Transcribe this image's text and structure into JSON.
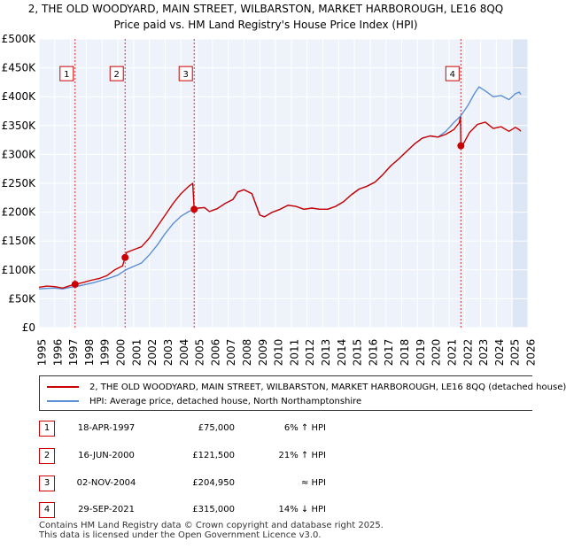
{
  "header": {
    "title_line1": "2, THE OLD WOODYARD, MAIN STREET, WILBARSTON, MARKET HARBOROUGH, LE16 8QQ",
    "title_line2": "Price paid vs. HM Land Registry's House Price Index (HPI)"
  },
  "colors": {
    "red": "#cc0000",
    "blue": "#5b8fd4",
    "shade": "#dde6f5",
    "grid": "#ffffff",
    "background": "#eef3fb"
  },
  "chart_data": {
    "type": "line",
    "title": "Price paid vs. HM Land Registry's House Price Index (HPI)",
    "xlim": [
      1995,
      2026
    ],
    "ylim": [
      0,
      500000
    ],
    "x_ticks": [
      "1995",
      "1996",
      "1997",
      "1998",
      "1999",
      "2000",
      "2001",
      "2002",
      "2003",
      "2004",
      "2005",
      "2006",
      "2007",
      "2008",
      "2009",
      "2010",
      "2011",
      "2012",
      "2013",
      "2014",
      "2015",
      "2016",
      "2017",
      "2018",
      "2019",
      "2020",
      "2021",
      "2022",
      "2023",
      "2024",
      "2025",
      "2026"
    ],
    "y_ticks": [
      {
        "value": 0,
        "label": "£0"
      },
      {
        "value": 50000,
        "label": "£50K"
      },
      {
        "value": 100000,
        "label": "£100K"
      },
      {
        "value": 150000,
        "label": "£150K"
      },
      {
        "value": 200000,
        "label": "£200K"
      },
      {
        "value": 250000,
        "label": "£250K"
      },
      {
        "value": 300000,
        "label": "£300K"
      },
      {
        "value": 350000,
        "label": "£350K"
      },
      {
        "value": 400000,
        "label": "£400K"
      },
      {
        "value": 450000,
        "label": "£450K"
      },
      {
        "value": 500000,
        "label": "£500K"
      }
    ],
    "future_shade_from": 2025.0,
    "series": [
      {
        "name": "2, THE OLD WOODYARD, MAIN STREET, WILBARSTON, MARKET HARBOROUGH, LE16 8QQ (detached house)",
        "color": "#cc0000",
        "points": [
          [
            1995.0,
            70000
          ],
          [
            1995.5,
            72000
          ],
          [
            1996.0,
            71000
          ],
          [
            1996.5,
            68500
          ],
          [
            1997.0,
            73000
          ],
          [
            1997.29,
            75000
          ],
          [
            1997.8,
            78000
          ],
          [
            1998.3,
            82000
          ],
          [
            1998.8,
            85000
          ],
          [
            1999.3,
            90000
          ],
          [
            1999.8,
            100000
          ],
          [
            2000.3,
            107000
          ],
          [
            2000.46,
            121500
          ],
          [
            2000.55,
            130000
          ],
          [
            2001.0,
            135000
          ],
          [
            2001.5,
            140000
          ],
          [
            2002.0,
            155000
          ],
          [
            2002.5,
            175000
          ],
          [
            2003.0,
            195000
          ],
          [
            2003.5,
            215000
          ],
          [
            2004.0,
            232000
          ],
          [
            2004.5,
            245000
          ],
          [
            2004.75,
            250000
          ],
          [
            2004.84,
            204950
          ],
          [
            2005.1,
            207000
          ],
          [
            2005.5,
            208000
          ],
          [
            2005.8,
            201000
          ],
          [
            2006.3,
            206000
          ],
          [
            2006.8,
            215000
          ],
          [
            2007.3,
            222000
          ],
          [
            2007.6,
            235000
          ],
          [
            2008.0,
            239000
          ],
          [
            2008.5,
            232000
          ],
          [
            2009.0,
            195000
          ],
          [
            2009.3,
            192000
          ],
          [
            2009.8,
            200000
          ],
          [
            2010.3,
            205000
          ],
          [
            2010.8,
            212000
          ],
          [
            2011.3,
            210000
          ],
          [
            2011.8,
            205000
          ],
          [
            2012.3,
            207000
          ],
          [
            2012.8,
            205000
          ],
          [
            2013.3,
            205000
          ],
          [
            2013.8,
            210000
          ],
          [
            2014.3,
            218000
          ],
          [
            2014.8,
            230000
          ],
          [
            2015.3,
            240000
          ],
          [
            2015.8,
            245000
          ],
          [
            2016.3,
            252000
          ],
          [
            2016.8,
            265000
          ],
          [
            2017.3,
            280000
          ],
          [
            2017.8,
            292000
          ],
          [
            2018.3,
            305000
          ],
          [
            2018.8,
            318000
          ],
          [
            2019.3,
            328000
          ],
          [
            2019.8,
            332000
          ],
          [
            2020.3,
            330000
          ],
          [
            2020.8,
            335000
          ],
          [
            2021.3,
            343000
          ],
          [
            2021.65,
            355000
          ],
          [
            2021.72,
            365000
          ],
          [
            2021.75,
            315000
          ],
          [
            2021.9,
            318000
          ],
          [
            2022.3,
            338000
          ],
          [
            2022.8,
            352000
          ],
          [
            2023.3,
            356000
          ],
          [
            2023.8,
            345000
          ],
          [
            2024.3,
            348000
          ],
          [
            2024.8,
            340000
          ],
          [
            2025.2,
            347000
          ],
          [
            2025.45,
            343000
          ],
          [
            2025.55,
            340000
          ]
        ]
      },
      {
        "name": "HPI: Average price, detached house, North Northamptonshire",
        "color": "#5b8fd4",
        "points": [
          [
            1995.0,
            67000
          ],
          [
            1995.5,
            68000
          ],
          [
            1996.0,
            68500
          ],
          [
            1996.5,
            67000
          ],
          [
            1997.0,
            70000
          ],
          [
            1997.5,
            72000
          ],
          [
            1998.0,
            75000
          ],
          [
            1998.5,
            78000
          ],
          [
            1999.0,
            82000
          ],
          [
            1999.5,
            86000
          ],
          [
            2000.0,
            91000
          ],
          [
            2000.5,
            100000
          ],
          [
            2001.0,
            106000
          ],
          [
            2001.5,
            112000
          ],
          [
            2002.0,
            126000
          ],
          [
            2002.5,
            143000
          ],
          [
            2003.0,
            163000
          ],
          [
            2003.5,
            180000
          ],
          [
            2004.0,
            193000
          ],
          [
            2004.5,
            201000
          ],
          [
            2004.84,
            205000
          ],
          [
            2005.1,
            207000
          ],
          [
            2005.5,
            208000
          ],
          [
            2005.8,
            201000
          ],
          [
            2006.3,
            206000
          ],
          [
            2006.8,
            215000
          ],
          [
            2007.3,
            222000
          ],
          [
            2007.6,
            235000
          ],
          [
            2008.0,
            239000
          ],
          [
            2008.5,
            232000
          ],
          [
            2009.0,
            195000
          ],
          [
            2009.3,
            192000
          ],
          [
            2009.8,
            200000
          ],
          [
            2010.3,
            205000
          ],
          [
            2010.8,
            212000
          ],
          [
            2011.3,
            210000
          ],
          [
            2011.8,
            205000
          ],
          [
            2012.3,
            207000
          ],
          [
            2012.8,
            205000
          ],
          [
            2013.3,
            205000
          ],
          [
            2013.8,
            210000
          ],
          [
            2014.3,
            218000
          ],
          [
            2014.8,
            230000
          ],
          [
            2015.3,
            240000
          ],
          [
            2015.8,
            245000
          ],
          [
            2016.3,
            252000
          ],
          [
            2016.8,
            265000
          ],
          [
            2017.3,
            280000
          ],
          [
            2017.8,
            292000
          ],
          [
            2018.3,
            305000
          ],
          [
            2018.8,
            318000
          ],
          [
            2019.3,
            328000
          ],
          [
            2019.8,
            332000
          ],
          [
            2020.3,
            330000
          ],
          [
            2020.8,
            340000
          ],
          [
            2021.3,
            355000
          ],
          [
            2021.75,
            367000
          ],
          [
            2022.2,
            385000
          ],
          [
            2022.6,
            405000
          ],
          [
            2022.9,
            417000
          ],
          [
            2023.3,
            410000
          ],
          [
            2023.8,
            400000
          ],
          [
            2024.3,
            402000
          ],
          [
            2024.8,
            395000
          ],
          [
            2025.2,
            405000
          ],
          [
            2025.45,
            408000
          ],
          [
            2025.55,
            404000
          ]
        ]
      }
    ],
    "sales": [
      {
        "label": "1",
        "x": 1997.29,
        "value": 75000
      },
      {
        "label": "2",
        "x": 2000.46,
        "value": 121500
      },
      {
        "label": "3",
        "x": 2004.84,
        "value": 204950
      },
      {
        "label": "4",
        "x": 2021.75,
        "value": 315000
      }
    ],
    "marker_label_value": 440000
  },
  "legend": {
    "red_label": "2, THE OLD WOODYARD, MAIN STREET, WILBARSTON, MARKET HARBOROUGH, LE16 8QQ (detached house)",
    "blue_label": "HPI: Average price, detached house, North Northamptonshire"
  },
  "transactions": [
    {
      "num": "1",
      "date": "18-APR-1997",
      "price": "£75,000",
      "hpi": "6% ↑ HPI"
    },
    {
      "num": "2",
      "date": "16-JUN-2000",
      "price": "£121,500",
      "hpi": "21% ↑ HPI"
    },
    {
      "num": "3",
      "date": "02-NOV-2004",
      "price": "£204,950",
      "hpi": "≈ HPI"
    },
    {
      "num": "4",
      "date": "29-SEP-2021",
      "price": "£315,000",
      "hpi": "14% ↓ HPI"
    }
  ],
  "footer": {
    "line1": "Contains HM Land Registry data © Crown copyright and database right 2025.",
    "line2": "This data is licensed under the Open Government Licence v3.0."
  }
}
